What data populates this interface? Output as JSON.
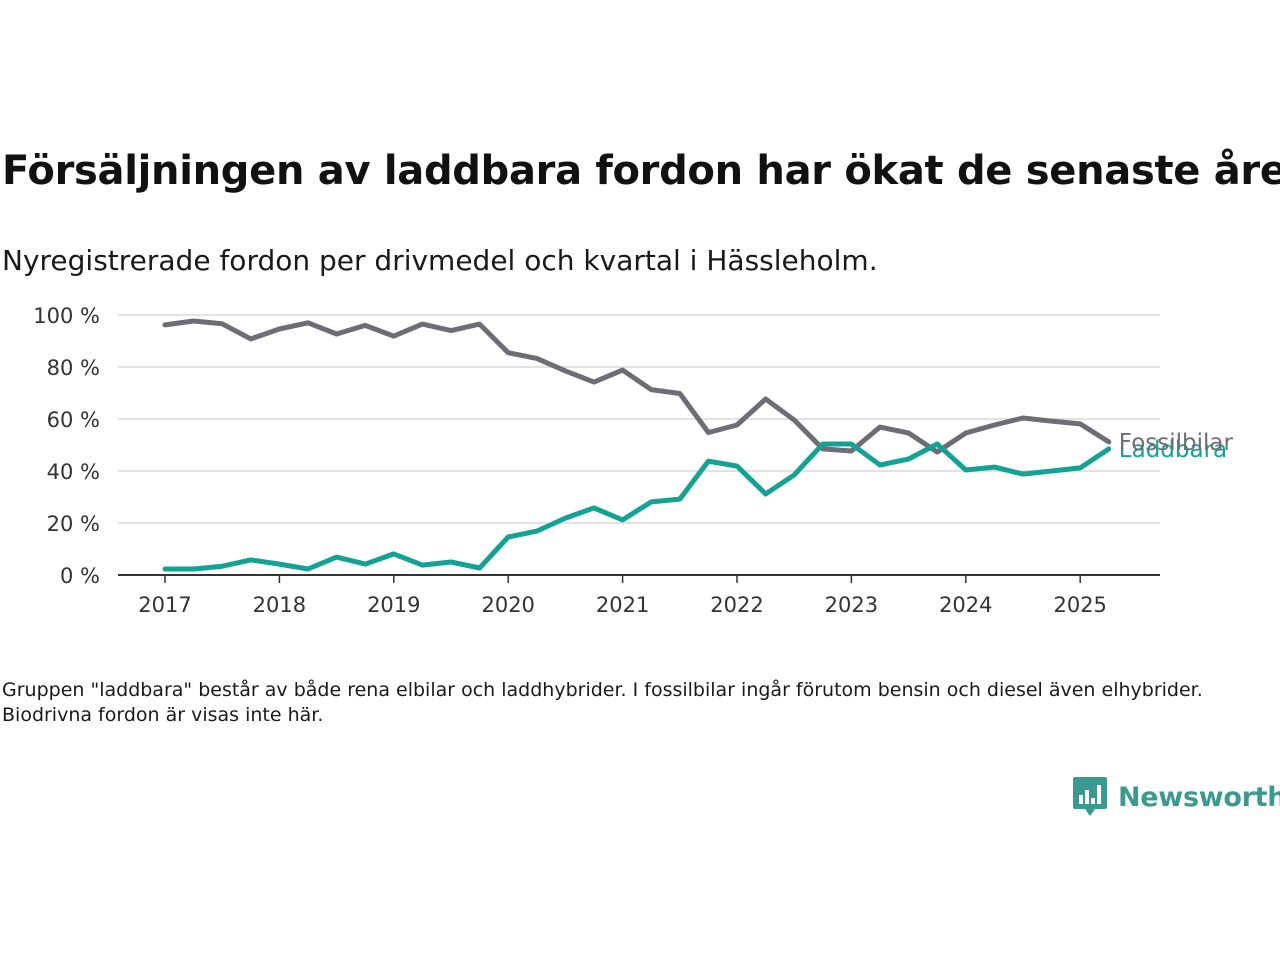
{
  "title": "Försäljningen av laddbara fordon har ökat de senaste åren",
  "subtitle": "Nyregistrerade fordon per drivmedel och kvartal i Hässleholm.",
  "footnote": "Gruppen \"laddbara\" består av både rena elbilar och laddhybrider. I fossilbilar ingår förutom bensin och diesel även elhybrider. Biodrivna fordon är visas inte här.",
  "brand": {
    "name": "Newsworthy",
    "icon": "newsworthy-logo-icon"
  },
  "colors": {
    "fossil": "#6e6d76",
    "laddbara": "#12a394",
    "grid": "#d9d9d9",
    "axis": "#333333"
  },
  "chart_data": {
    "type": "line",
    "title": "Försäljningen av laddbara fordon har ökat de senaste åren",
    "subtitle": "Nyregistrerade fordon per drivmedel och kvartal i Hässleholm.",
    "xlabel": "",
    "ylabel": "",
    "ylim": [
      0,
      100
    ],
    "y_ticks": [
      0,
      20,
      40,
      60,
      80,
      100
    ],
    "y_tick_labels": [
      "0 %",
      "20 %",
      "40 %",
      "60 %",
      "80 %",
      "100 %"
    ],
    "x_ticks": [
      2017,
      2018,
      2019,
      2020,
      2021,
      2022,
      2023,
      2024,
      2025
    ],
    "x_tick_labels": [
      "2017",
      "2018",
      "2019",
      "2020",
      "2021",
      "2022",
      "2023",
      "2024",
      "2025"
    ],
    "grid": true,
    "x": [
      "2017Q1",
      "2017Q2",
      "2017Q3",
      "2017Q4",
      "2018Q1",
      "2018Q2",
      "2018Q3",
      "2018Q4",
      "2019Q1",
      "2019Q2",
      "2019Q3",
      "2019Q4",
      "2020Q1",
      "2020Q2",
      "2020Q3",
      "2020Q4",
      "2021Q1",
      "2021Q2",
      "2021Q3",
      "2021Q4",
      "2022Q1",
      "2022Q2",
      "2022Q3",
      "2022Q4",
      "2023Q1",
      "2023Q2",
      "2023Q3",
      "2023Q4",
      "2024Q1",
      "2024Q2",
      "2024Q3",
      "2024Q4",
      "2025Q1",
      "2025Q2"
    ],
    "series": [
      {
        "name": "Fossilbilar",
        "color": "#6e6d76",
        "values": [
          96.2,
          97.7,
          96.6,
          90.8,
          94.6,
          97.0,
          92.7,
          96.0,
          91.9,
          96.5,
          94.0,
          96.5,
          85.5,
          83.3,
          78.5,
          74.2,
          78.8,
          71.3,
          69.8,
          54.8,
          57.7,
          67.7,
          59.6,
          48.5,
          47.7,
          56.9,
          54.6,
          47.3,
          54.6,
          57.7,
          60.4,
          59.2,
          58.1,
          51.2
        ]
      },
      {
        "name": "Laddbara",
        "color": "#12a394",
        "values": [
          2.3,
          2.3,
          3.4,
          5.8,
          4.2,
          2.3,
          6.9,
          4.2,
          8.1,
          3.8,
          5.0,
          2.7,
          14.6,
          16.9,
          21.9,
          25.8,
          21.2,
          28.1,
          29.2,
          43.8,
          41.9,
          31.2,
          38.5,
          50.4,
          50.4,
          42.3,
          44.6,
          50.4,
          40.4,
          41.5,
          38.8,
          40.0,
          41.2,
          48.5
        ]
      }
    ]
  }
}
